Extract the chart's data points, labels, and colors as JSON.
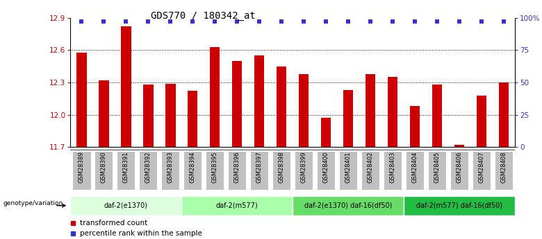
{
  "title": "GDS770 / 180342_at",
  "samples": [
    "GSM28389",
    "GSM28390",
    "GSM28391",
    "GSM28392",
    "GSM28393",
    "GSM28394",
    "GSM28395",
    "GSM28396",
    "GSM28397",
    "GSM28398",
    "GSM28399",
    "GSM28400",
    "GSM28401",
    "GSM28402",
    "GSM28403",
    "GSM28404",
    "GSM28405",
    "GSM28406",
    "GSM28407",
    "GSM28408"
  ],
  "values": [
    12.58,
    12.32,
    12.82,
    12.28,
    12.29,
    12.22,
    12.63,
    12.5,
    12.55,
    12.45,
    12.38,
    11.97,
    12.23,
    12.38,
    12.35,
    12.08,
    12.28,
    11.72,
    12.18,
    12.3
  ],
  "ylim": [
    11.7,
    12.9
  ],
  "yticks": [
    11.7,
    12.0,
    12.3,
    12.6,
    12.9
  ],
  "y2ticks": [
    0,
    25,
    50,
    75,
    100
  ],
  "bar_color": "#CC0000",
  "dot_color": "#3333CC",
  "groups": [
    {
      "label": "daf-2(e1370)",
      "start": 0,
      "end": 5,
      "color": "#DDFFDD"
    },
    {
      "label": "daf-2(m577)",
      "start": 5,
      "end": 10,
      "color": "#AAFFAA"
    },
    {
      "label": "daf-2(e1370) daf-16(df50)",
      "start": 10,
      "end": 15,
      "color": "#66DD66"
    },
    {
      "label": "daf-2(m577) daf-16(df50)",
      "start": 15,
      "end": 20,
      "color": "#22BB44"
    }
  ],
  "legend_items": [
    {
      "label": "transformed count",
      "color": "#CC0000"
    },
    {
      "label": "percentile rank within the sample",
      "color": "#3333CC"
    }
  ],
  "tick_bg": "#C0C0C0",
  "genotype_label": "genotype/variation"
}
